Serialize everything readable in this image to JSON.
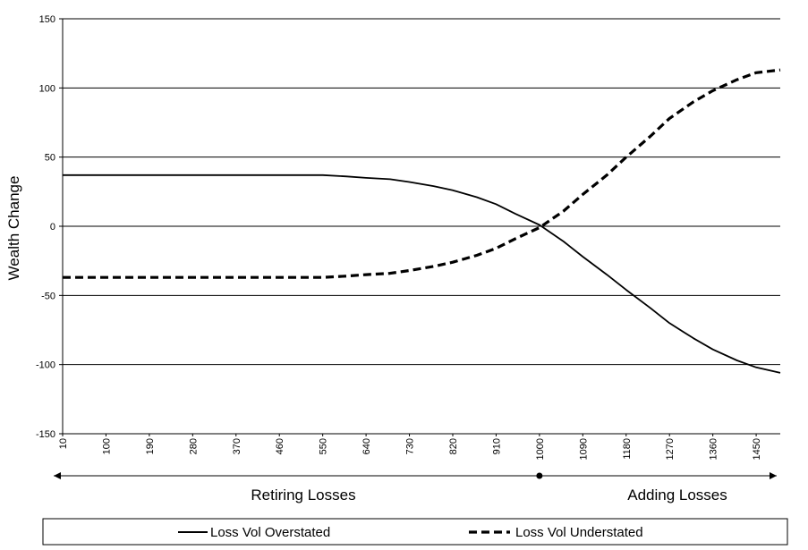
{
  "chart_data": {
    "type": "line",
    "title": "",
    "xlabel": "",
    "ylabel": "Wealth Change",
    "ylim": [
      -150,
      150
    ],
    "xlim": [
      10,
      1500
    ],
    "y_ticks": [
      150,
      100,
      50,
      0,
      -50,
      -100,
      -150
    ],
    "x_ticks": [
      10,
      100,
      190,
      280,
      370,
      460,
      550,
      640,
      730,
      820,
      910,
      1000,
      1090,
      1180,
      1270,
      1360,
      1450
    ],
    "grid": "horizontal",
    "legend_position": "bottom",
    "regions": {
      "left_label": "Retiring Losses",
      "right_label": "Adding Losses",
      "divider_x": 1000
    },
    "series": [
      {
        "name": "Loss Vol Overstated",
        "style": "solid",
        "color": "#000000",
        "x": [
          10,
          100,
          190,
          280,
          370,
          460,
          550,
          600,
          640,
          690,
          730,
          780,
          820,
          870,
          910,
          950,
          1000,
          1050,
          1090,
          1140,
          1180,
          1230,
          1270,
          1320,
          1360,
          1410,
          1450,
          1500
        ],
        "y": [
          37,
          37,
          37,
          37,
          37,
          37,
          37,
          36,
          35,
          34,
          32,
          29,
          26,
          21,
          16,
          9,
          1,
          -11,
          -22,
          -35,
          -46,
          -59,
          -70,
          -81,
          -89,
          -97,
          -102,
          -106
        ]
      },
      {
        "name": "Loss Vol Understated",
        "style": "dashed",
        "color": "#000000",
        "x": [
          10,
          100,
          190,
          280,
          370,
          460,
          550,
          600,
          640,
          690,
          730,
          780,
          820,
          870,
          910,
          950,
          1000,
          1050,
          1090,
          1140,
          1180,
          1230,
          1270,
          1320,
          1360,
          1410,
          1450,
          1500
        ],
        "y": [
          -37,
          -37,
          -37,
          -37,
          -37,
          -37,
          -37,
          -36,
          -35,
          -34,
          -32,
          -29,
          -26,
          -21,
          -16,
          -9,
          -1,
          11,
          23,
          37,
          50,
          65,
          78,
          90,
          98,
          106,
          111,
          113
        ]
      }
    ]
  }
}
